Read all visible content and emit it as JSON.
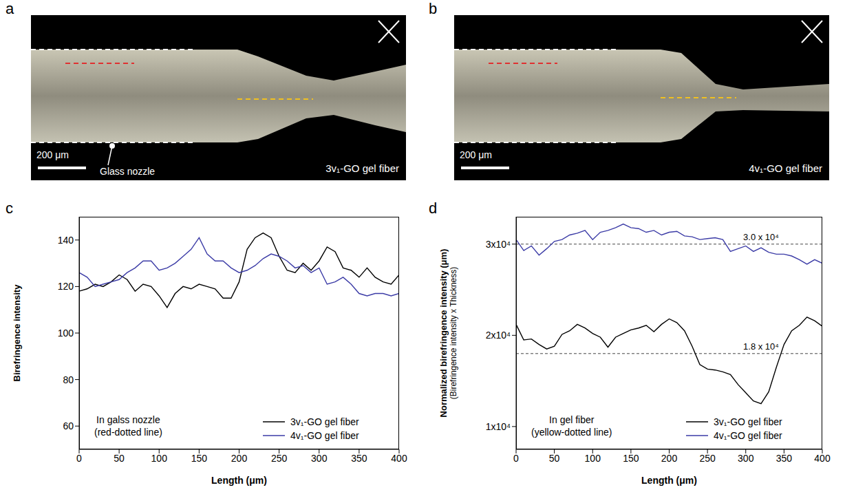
{
  "images": [
    {
      "panel_label": "a",
      "scale_bar": "200 μm",
      "nozzle_label": "Glass nozzle",
      "label": "3v₁-GO gel fiber"
    },
    {
      "panel_label": "b",
      "scale_bar": "200 μm",
      "label": "4v₁-GO gel fiber"
    }
  ],
  "chart_data": [
    {
      "type": "line",
      "panel_label": "c",
      "xlabel": "Length (μm)",
      "ylabel": "Birefringence intensity",
      "annotation": [
        "In galss nozzle",
        "(red-dotted line)"
      ],
      "x": [
        0,
        10,
        20,
        30,
        40,
        50,
        60,
        70,
        80,
        90,
        100,
        110,
        120,
        130,
        140,
        150,
        160,
        170,
        180,
        190,
        200,
        210,
        220,
        230,
        240,
        250,
        260,
        270,
        280,
        290,
        300,
        310,
        320,
        330,
        340,
        350,
        360,
        370,
        380,
        390,
        400
      ],
      "xlim": [
        0,
        400
      ],
      "xticks": [
        0,
        50,
        100,
        150,
        200,
        250,
        300,
        350,
        400
      ],
      "ylim": [
        50,
        150
      ],
      "yticks": [
        60,
        80,
        100,
        120,
        140
      ],
      "grid": false,
      "legend": "lower right",
      "series": [
        {
          "name": "3v₁-GO gel fiber",
          "color": "#000000",
          "line_style": "solid",
          "values": [
            118,
            119,
            121,
            120,
            122,
            125,
            123,
            118,
            121,
            120,
            116,
            111,
            117,
            120,
            119,
            121,
            120,
            119,
            115,
            115,
            122,
            136,
            141,
            143,
            141,
            133,
            127,
            126,
            130,
            127,
            131,
            137,
            135,
            128,
            127,
            124,
            128,
            124,
            122,
            121,
            125
          ]
        },
        {
          "name": "4v₁-GO gel fiber",
          "color": "#3b3ba6",
          "line_style": "solid",
          "values": [
            126,
            124,
            120,
            121,
            122,
            123,
            126,
            128,
            131,
            131,
            127,
            128,
            130,
            133,
            136,
            141,
            134,
            131,
            131,
            128,
            126,
            127,
            129,
            132,
            134,
            133,
            131,
            128,
            129,
            126,
            128,
            121,
            122,
            124,
            121,
            117,
            116,
            117,
            117,
            116,
            117
          ]
        }
      ]
    },
    {
      "type": "line",
      "panel_label": "d",
      "xlabel": "Length (μm)",
      "ylabel": "Normalized birefringence intensity (μm)",
      "ylabel_note": "(Birefringence intensity x Thickness)",
      "annotation": [
        "In gel fiber",
        "(yellow-dotted line)"
      ],
      "x": [
        0,
        10,
        20,
        30,
        40,
        50,
        60,
        70,
        80,
        90,
        100,
        110,
        120,
        130,
        140,
        150,
        160,
        170,
        180,
        190,
        200,
        210,
        220,
        230,
        240,
        250,
        260,
        270,
        280,
        290,
        300,
        310,
        320,
        330,
        340,
        350,
        360,
        370,
        380,
        390,
        400
      ],
      "xlim": [
        0,
        400
      ],
      "xticks": [
        0,
        50,
        100,
        150,
        200,
        250,
        300,
        350,
        400
      ],
      "ylim": [
        7500,
        33000
      ],
      "yticks": [
        {
          "value": 10000,
          "label": "1x10⁴"
        },
        {
          "value": 20000,
          "label": "2x10⁴"
        },
        {
          "value": 30000,
          "label": "3x10⁴"
        }
      ],
      "grid": false,
      "legend": "lower right",
      "reference_lines": [
        {
          "value": 30000,
          "label": "3.0 x 10⁴"
        },
        {
          "value": 18000,
          "label": "1.8 x 10⁴"
        }
      ],
      "series": [
        {
          "name": "3v₁-GO gel fiber",
          "color": "#000000",
          "line_style": "solid",
          "values": [
            21200,
            19500,
            19600,
            19000,
            18500,
            18800,
            20100,
            20500,
            21200,
            20800,
            20200,
            19800,
            18700,
            19800,
            20200,
            20600,
            20800,
            21100,
            20400,
            21200,
            21800,
            21400,
            20500,
            18800,
            16800,
            16300,
            16200,
            16000,
            15700,
            14600,
            13700,
            12800,
            12500,
            13800,
            16500,
            19000,
            20500,
            21100,
            22000,
            21600,
            21000
          ]
        },
        {
          "name": "4v₁-GO gel fiber",
          "color": "#3b3ba6",
          "line_style": "solid",
          "values": [
            30500,
            29300,
            29800,
            28800,
            29500,
            30300,
            30500,
            31000,
            31200,
            31500,
            30500,
            31300,
            31500,
            31800,
            32200,
            31800,
            31700,
            31300,
            31500,
            31000,
            31300,
            31400,
            30900,
            30800,
            30500,
            30600,
            30700,
            30500,
            29200,
            29500,
            29800,
            29200,
            29600,
            29100,
            28900,
            28900,
            28700,
            28300,
            27800,
            28300,
            27900
          ]
        }
      ]
    }
  ]
}
